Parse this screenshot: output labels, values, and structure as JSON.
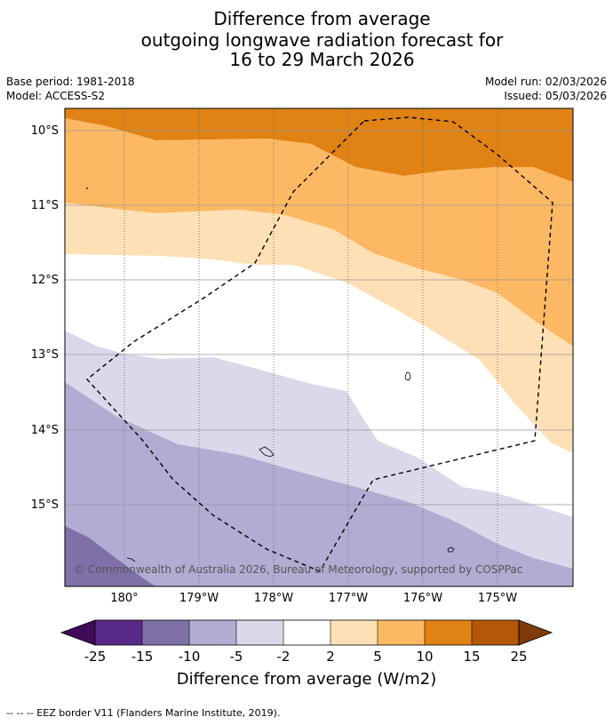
{
  "header": {
    "title_line1": "Difference from average",
    "title_line2": "outgoing longwave radiation forecast for",
    "title_line3": "16 to 29 March 2026",
    "base_period": "Base period: 1981-2018",
    "model": "Model: ACCESS-S2",
    "model_run": "Model run: 02/03/2026",
    "issued": "Issued: 05/03/2026"
  },
  "map": {
    "lat_labels": [
      "10°S",
      "11°S",
      "12°S",
      "13°S",
      "14°S",
      "15°S"
    ],
    "lon_labels": [
      "180°",
      "179°W",
      "178°W",
      "177°W",
      "176°W",
      "175°W"
    ],
    "copyright": "© Commonwealth of Australia 2026, Bureau of Meteorology, supported by COSPPac"
  },
  "colorbar": {
    "ticks": [
      "-25",
      "-15",
      "-10",
      "-5",
      "-2",
      "2",
      "5",
      "10",
      "15",
      "25"
    ],
    "label": "Difference from average (W/m2)",
    "colors": [
      "#3f0a57",
      "#5a2a8a",
      "#8070aa",
      "#b2abd2",
      "#d9d9ea",
      "#ffffff",
      "#fee0b6",
      "#fdb863",
      "#e08214",
      "#b35806",
      "#7f3b08"
    ]
  },
  "footer": {
    "legend_text": "--  --  -- EEZ border V11 (Flanders Marine Institute, 2019)."
  }
}
